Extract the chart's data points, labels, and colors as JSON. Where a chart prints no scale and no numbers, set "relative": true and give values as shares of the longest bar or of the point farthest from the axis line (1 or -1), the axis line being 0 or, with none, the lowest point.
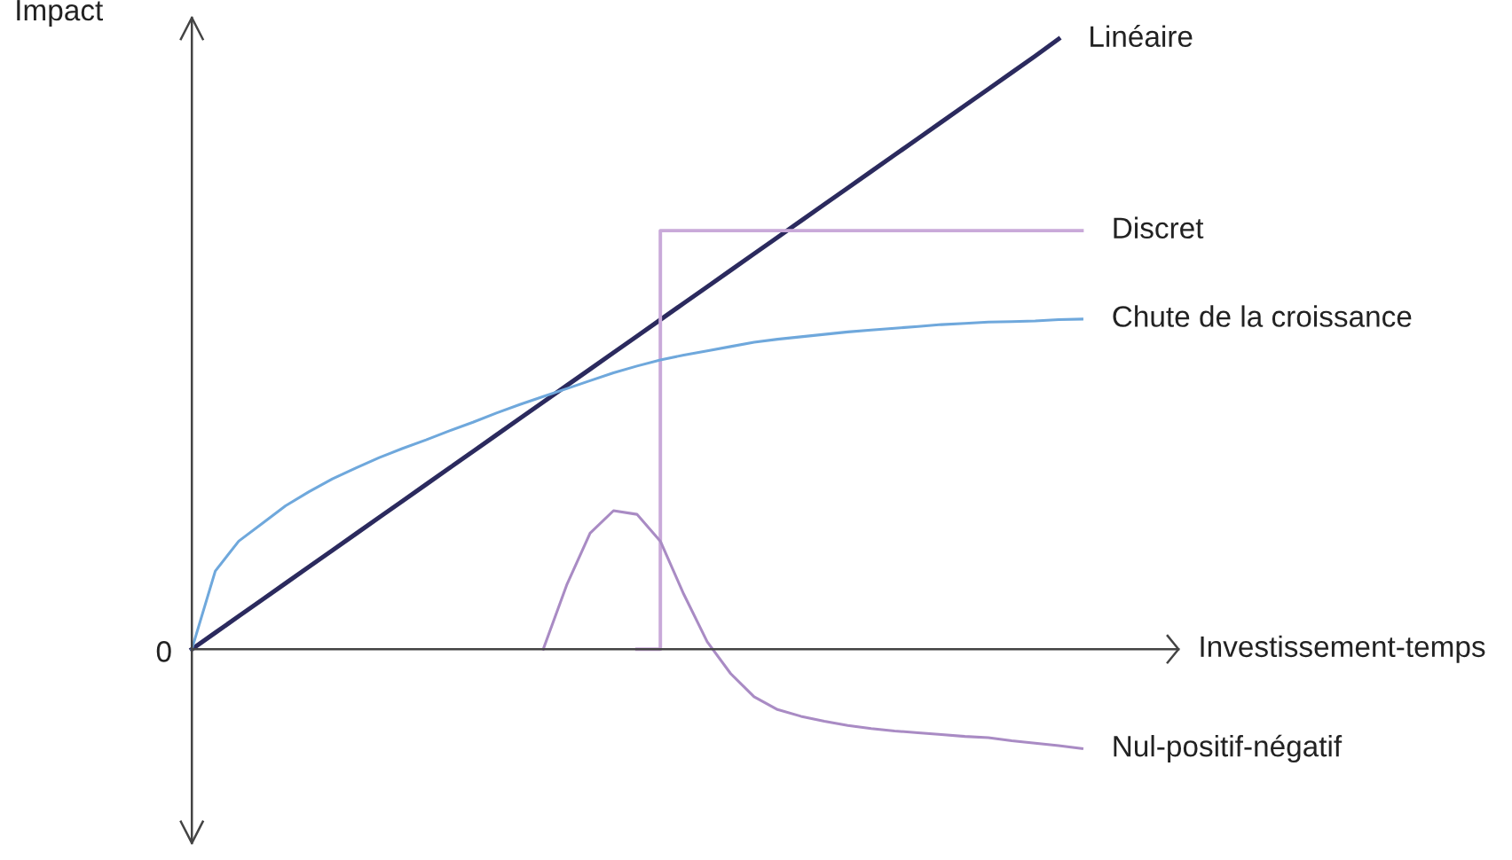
{
  "chart_data": {
    "type": "line",
    "relative": true,
    "xlabel": "Investissement-temps",
    "ylabel": "Impact",
    "annotations": [
      "0"
    ],
    "legend": false,
    "categories": [
      null,
      null,
      null,
      null,
      null,
      null,
      null,
      null,
      null,
      null,
      null,
      null,
      null,
      null,
      null,
      null,
      null,
      null,
      null,
      null,
      null,
      null,
      null,
      null,
      null,
      null,
      null,
      null,
      null,
      null,
      null,
      null,
      null,
      null,
      null,
      null,
      null,
      null,
      null
    ],
    "series": [
      {
        "name": "Linéaire",
        "color": "#2b2a5e",
        "values": [
          0,
          0.027,
          0.054,
          0.081,
          0.108,
          0.135,
          0.162,
          0.189,
          0.216,
          0.243,
          0.27,
          0.297,
          0.324,
          0.351,
          0.378,
          0.405,
          0.432,
          0.459,
          0.486,
          0.513,
          0.54,
          0.567,
          0.594,
          0.621,
          0.648,
          0.675,
          0.702,
          0.729,
          0.756,
          0.783,
          0.81,
          0.837,
          0.864,
          0.891,
          0.918,
          0.945,
          0.972,
          1.0,
          null
        ]
      },
      {
        "name": "Discret",
        "type": "step",
        "color": "#c9a9d9",
        "values": [
          null,
          null,
          null,
          null,
          null,
          null,
          null,
          null,
          null,
          null,
          null,
          null,
          null,
          null,
          null,
          null,
          null,
          null,
          null,
          0,
          0.686,
          0.686,
          0.686,
          0.686,
          0.686,
          0.686,
          0.686,
          0.686,
          0.686,
          0.686,
          0.686,
          0.686,
          0.686,
          0.686,
          0.686,
          0.686,
          0.686,
          0.686,
          0.686
        ]
      },
      {
        "name": "Chute de la croissance",
        "color": "#6fa8dc",
        "values": [
          0,
          0.128,
          0.177,
          0.206,
          0.235,
          0.258,
          0.279,
          0.297,
          0.314,
          0.329,
          0.343,
          0.358,
          0.372,
          0.387,
          0.401,
          0.414,
          0.427,
          0.44,
          0.453,
          0.464,
          0.474,
          0.482,
          0.489,
          0.496,
          0.503,
          0.508,
          0.512,
          0.516,
          0.52,
          0.523,
          0.526,
          0.529,
          0.532,
          0.534,
          0.536,
          0.537,
          0.538,
          0.54,
          0.541
        ]
      },
      {
        "name": "Nul-positif-négatif",
        "color": "#a98bc4",
        "values": [
          null,
          null,
          null,
          null,
          null,
          null,
          null,
          null,
          null,
          null,
          null,
          null,
          null,
          null,
          null,
          0,
          0.105,
          0.19,
          0.227,
          0.221,
          0.177,
          0.09,
          0.012,
          -0.04,
          -0.078,
          -0.099,
          -0.11,
          -0.118,
          -0.125,
          -0.13,
          -0.134,
          -0.137,
          -0.14,
          -0.143,
          -0.145,
          -0.15,
          -0.154,
          -0.158,
          -0.163
        ]
      }
    ]
  }
}
